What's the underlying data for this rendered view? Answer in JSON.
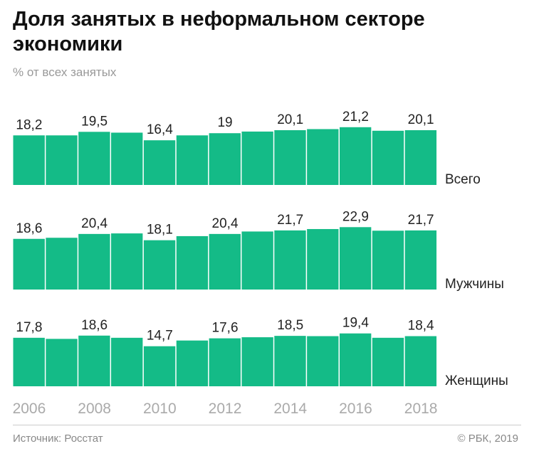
{
  "title": "Доля занятых в неформальном секторе экономики",
  "subtitle": "% от всех занятых",
  "source": "Источник: Росстат",
  "copyright": "© РБК, 2019",
  "chart_data": {
    "type": "bar",
    "bar_color": "#14bb87",
    "categories": [
      2006,
      2007,
      2008,
      2009,
      2010,
      2011,
      2012,
      2013,
      2014,
      2015,
      2016,
      2017,
      2018
    ],
    "tick_labels": [
      "2006",
      "2008",
      "2010",
      "2012",
      "2014",
      "2016",
      "2018"
    ],
    "series": [
      {
        "name": "Всего",
        "values": [
          18.2,
          18.2,
          19.5,
          19.2,
          16.4,
          18.2,
          19,
          19.6,
          20.1,
          20.5,
          21.2,
          19.9,
          20.1
        ],
        "labels": [
          "18,2",
          "",
          "19,5",
          "",
          "16,4",
          "",
          "19",
          "",
          "20,1",
          "",
          "21,2",
          "",
          "20,1"
        ]
      },
      {
        "name": "Мужчины",
        "values": [
          18.6,
          19.0,
          20.4,
          20.6,
          18.1,
          19.6,
          20.4,
          21.3,
          21.7,
          22.2,
          22.9,
          21.6,
          21.7
        ],
        "labels": [
          "18,6",
          "",
          "20,4",
          "",
          "18,1",
          "",
          "20,4",
          "",
          "21,7",
          "",
          "22,9",
          "",
          "21,7"
        ]
      },
      {
        "name": "Женщины",
        "values": [
          17.8,
          17.4,
          18.6,
          17.8,
          14.7,
          16.8,
          17.6,
          18.0,
          18.5,
          18.4,
          19.4,
          17.8,
          18.4
        ],
        "labels": [
          "17,8",
          "",
          "18,6",
          "",
          "14,7",
          "",
          "17,6",
          "",
          "18,5",
          "",
          "19,4",
          "",
          "18,4"
        ]
      }
    ]
  }
}
